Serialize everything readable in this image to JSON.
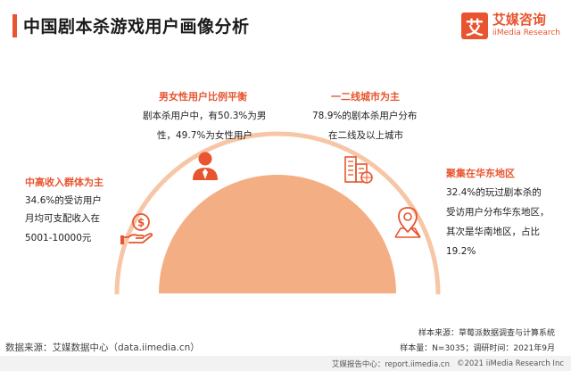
{
  "title": "中国剧本杀游戏用户画像分析",
  "logo": {
    "mark": "艾",
    "name_cn": "艾媒咨询",
    "name_en": "iiMedia Research"
  },
  "sections": {
    "gender": {
      "heading": "男女性用户比例平衡",
      "line1": "剧本杀用户中，有50.3%为男",
      "line2": "性，49.7%为女性用户"
    },
    "city": {
      "heading": "一二线城市为主",
      "line1": "78.9%的剧本杀用户分布",
      "line2": "在二线及以上城市"
    },
    "income": {
      "heading": "中高收入群体为主",
      "line1": "34.6%的受访用户",
      "line2": "月均可支配收入在",
      "line3": "5001-10000元"
    },
    "region": {
      "heading": "聚集在华东地区",
      "line1": "32.4%的玩过剧本杀的",
      "line2": "受访用户分布华东地区，",
      "line3": "其次是华南地区，占比",
      "line4": "19.2%"
    }
  },
  "source": "数据来源：艾媒数据中心（data.iimedia.cn）",
  "sample_source": "样本来源：草莓派数据调查与计算系统",
  "sample_size": "样本量：N=3035；调研时间：2021年9月",
  "footer": {
    "report": "艾媒报告中心：report.iimedia.cn",
    "copyright": "©2021  iiMedia Research  Inc"
  },
  "colors": {
    "accent": "#e8542f",
    "semicircle": "#f4ae84",
    "arc": "#f6c6a6"
  },
  "icons": [
    "user-icon",
    "buildings-icon",
    "money-hand-icon",
    "map-pin-icon"
  ]
}
